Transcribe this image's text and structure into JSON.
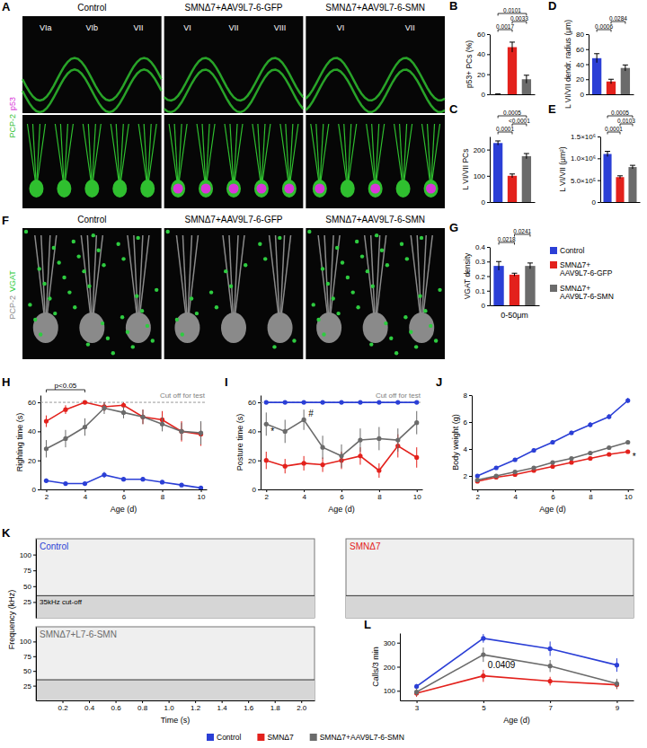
{
  "images": [
    {
      "panel": "A",
      "columns": [
        "Control",
        "SMNΔ7+AAV9L7-6-GFP",
        "SMNΔ7+AAV9L7-6-SMN"
      ],
      "channels": [
        "PCP-2",
        "p53"
      ],
      "channel_colors": [
        "#2fbf2f",
        "#d936d9"
      ],
      "lobule_labels": [
        [
          "VIa",
          "VIb",
          "VII"
        ],
        [
          "VI",
          "VII",
          "VIII"
        ],
        [
          "VI",
          "VII"
        ]
      ]
    },
    {
      "panel": "F",
      "columns": [
        "Control",
        "SMNΔ7+AAV9L7-6-GFP",
        "SMNΔ7+AAV9L7-6-SMN"
      ],
      "channels": [
        "PCP-2",
        "VGAT"
      ],
      "channel_colors": [
        "#8a8a8a",
        "#2ecc40"
      ]
    }
  ],
  "legends": [
    {
      "entries": [
        {
          "name": "Control",
          "color": "#2b3fd6"
        },
        {
          "name": "SMNΔ7+AAV9L7-6-GFP",
          "color": "#e3211c"
        },
        {
          "name": "SMNΔ7+AAV9L7-6-SMN",
          "color": "#6b6b6b"
        }
      ]
    },
    {
      "entries": [
        {
          "name": "Control",
          "color": "#2b3fd6"
        },
        {
          "name": "SMNΔ7",
          "color": "#e3211c"
        },
        {
          "name": "SMNΔ7+AAV9L7-6-SMN",
          "color": "#6b6b6b"
        }
      ]
    }
  ],
  "chart_data": [
    {
      "type": "bar",
      "panel": "B",
      "y_label": "p53+ PCs (%)",
      "categories": [
        null,
        null,
        null
      ],
      "values": [
        0,
        47,
        15
      ],
      "errors": [
        0.5,
        5,
        4
      ],
      "colors": [
        "#2b3fd6",
        "#e3211c",
        "#6b6b6b"
      ],
      "ylim": [
        0,
        60
      ],
      "yticks": [
        0,
        20,
        40,
        60
      ],
      "tick_labels": "y",
      "annotations": [
        {
          "text": "0.0017",
          "between": [
            0,
            1
          ]
        },
        {
          "text": "0.0033",
          "between": [
            1,
            2
          ]
        },
        {
          "text": "0.0101",
          "between": [
            0,
            2
          ]
        }
      ]
    },
    {
      "type": "bar",
      "panel": "C",
      "y_label": "L VI/VII PCs",
      "categories": [
        null,
        null,
        null
      ],
      "values": [
        225,
        100,
        175
      ],
      "errors": [
        8,
        7,
        10
      ],
      "colors": [
        "#2b3fd6",
        "#e3211c",
        "#6b6b6b"
      ],
      "ylim": [
        0,
        250
      ],
      "yticks": [
        0,
        100,
        200
      ],
      "tick_labels": "y",
      "annotations": [
        {
          "text": "0.0001",
          "between": [
            0,
            1
          ]
        },
        {
          "text": "<0.0001",
          "between": [
            1,
            2
          ]
        },
        {
          "text": "0.0005",
          "between": [
            0,
            2
          ]
        }
      ]
    },
    {
      "type": "bar",
      "panel": "D",
      "y_label": "L VI/VII dendr. radius (μm)",
      "categories": [
        null,
        null,
        null
      ],
      "values": [
        48,
        17,
        35
      ],
      "errors": [
        6,
        3,
        4
      ],
      "colors": [
        "#2b3fd6",
        "#e3211c",
        "#6b6b6b"
      ],
      "ylim": [
        0,
        80
      ],
      "yticks": [
        0,
        20,
        40,
        60,
        80
      ],
      "tick_labels": "y",
      "annotations": [
        {
          "text": "0.0006",
          "between": [
            0,
            1
          ]
        },
        {
          "text": "0.0284",
          "between": [
            1,
            2
          ]
        }
      ]
    },
    {
      "type": "bar",
      "panel": "E",
      "y_label": "L VI/VII (μm²)",
      "categories": [
        null,
        null,
        null
      ],
      "values": [
        1100000,
        570000,
        800000
      ],
      "errors": [
        60000,
        30000,
        40000
      ],
      "colors": [
        "#2b3fd6",
        "#e3211c",
        "#6b6b6b"
      ],
      "ylim": [
        0,
        1500000
      ],
      "yticks": [
        0,
        {
          "value": 500000,
          "label": "5.0×10⁵"
        },
        {
          "value": 1000000,
          "label": "1.0×10⁶"
        },
        {
          "value": 1500000,
          "label": "1.5×10⁶"
        }
      ],
      "tick_labels": "y",
      "annotations": [
        {
          "text": "0.0001",
          "between": [
            0,
            1
          ]
        },
        {
          "text": "0.0103",
          "between": [
            1,
            2
          ]
        },
        {
          "text": "0.0005",
          "between": [
            0,
            2
          ]
        }
      ]
    },
    {
      "type": "bar",
      "panel": "G",
      "y_label": "VGAT density",
      "x_label": "0-50μm",
      "categories": [
        null,
        null,
        null
      ],
      "values": [
        0.27,
        0.21,
        0.27
      ],
      "errors": [
        0.03,
        0.01,
        0.02
      ],
      "colors": [
        "#2b3fd6",
        "#e3211c",
        "#6b6b6b"
      ],
      "ylim": [
        0,
        0.4
      ],
      "yticks": [
        0,
        0.1,
        0.2,
        0.3,
        0.4
      ],
      "tick_labels": "y",
      "annotations": [
        {
          "text": "0.0218",
          "between": [
            0,
            1
          ]
        },
        {
          "text": "0.0241",
          "between": [
            1,
            2
          ]
        }
      ]
    },
    {
      "type": "line",
      "panel": "H",
      "x_label": "Age (d)",
      "y_label": "Righting time (s)",
      "x": [
        2,
        3,
        4,
        5,
        6,
        7,
        8,
        9,
        10
      ],
      "xlim": [
        1.7,
        10.3
      ],
      "xticks": [
        2,
        4,
        6,
        8,
        10
      ],
      "ylim": [
        0,
        65
      ],
      "yticks": [
        0,
        20,
        40,
        60
      ],
      "reference_line": {
        "value": 60,
        "label": "Cut off for test"
      },
      "annotations": [
        {
          "text": "p<0.05",
          "x": [
            2,
            4
          ]
        }
      ],
      "series": [
        {
          "color": "#2b3fd6",
          "marker": "circle",
          "values": [
            6,
            4,
            4,
            10,
            7,
            7,
            5,
            3,
            1
          ],
          "errors": [
            1.5,
            1,
            1,
            2,
            1.5,
            1.5,
            1,
            1,
            0.5
          ]
        },
        {
          "color": "#e3211c",
          "marker": "circle",
          "values": [
            47,
            55,
            60,
            57,
            58,
            50,
            48,
            40,
            38
          ],
          "errors": [
            4,
            3,
            0,
            3,
            2,
            5,
            6,
            7,
            8
          ]
        },
        {
          "color": "#6b6b6b",
          "marker": "circle",
          "values": [
            28,
            35,
            43,
            56,
            53,
            50,
            45,
            40,
            39
          ],
          "errors": [
            6,
            6,
            6,
            4,
            4,
            5,
            5,
            6,
            8
          ]
        }
      ]
    },
    {
      "type": "line",
      "panel": "I",
      "x_label": "Age (d)",
      "y_label": "Posture time (s)",
      "x": [
        2,
        3,
        4,
        5,
        6,
        7,
        8,
        9,
        10
      ],
      "xlim": [
        1.7,
        10.3
      ],
      "xticks": [
        2,
        4,
        6,
        8,
        10
      ],
      "ylim": [
        0,
        65
      ],
      "yticks": [
        0,
        20,
        40,
        60
      ],
      "reference_line": {
        "value": 60,
        "label": "Cut off for test"
      },
      "annotations": [
        {
          "text": "*",
          "x": 2,
          "y": 38
        },
        {
          "text": "#",
          "x": 4,
          "y": 50
        }
      ],
      "series": [
        {
          "color": "#2b3fd6",
          "marker": "circle",
          "values": [
            60,
            60,
            60,
            60,
            60,
            60,
            60,
            60,
            60
          ],
          "errors": [
            0,
            0,
            0,
            0,
            0,
            0,
            0,
            0,
            0
          ]
        },
        {
          "color": "#e3211c",
          "marker": "circle",
          "values": [
            20,
            16,
            18,
            17,
            20,
            23,
            13,
            30,
            22
          ],
          "errors": [
            6,
            5,
            5,
            5,
            6,
            6,
            5,
            8,
            7
          ]
        },
        {
          "color": "#6b6b6b",
          "marker": "circle",
          "values": [
            45,
            40,
            48,
            29,
            23,
            34,
            35,
            34,
            46
          ],
          "errors": [
            8,
            8,
            7,
            8,
            8,
            8,
            8,
            8,
            8
          ]
        }
      ]
    },
    {
      "type": "line",
      "panel": "J",
      "x_label": "Age (d)",
      "y_label": "Body weight (g)",
      "x": [
        2,
        3,
        4,
        5,
        6,
        7,
        8,
        9,
        10
      ],
      "xlim": [
        1.7,
        10.3
      ],
      "xticks": [
        2,
        4,
        6,
        8,
        10
      ],
      "ylim": [
        1,
        8
      ],
      "yticks": [
        2,
        4,
        6,
        8
      ],
      "annotations": [
        {
          "text": "*",
          "x": 10,
          "y": 3.2
        }
      ],
      "series": [
        {
          "color": "#2b3fd6",
          "marker": "circle",
          "values": [
            2.0,
            2.6,
            3.2,
            3.9,
            4.5,
            5.2,
            5.8,
            6.4,
            7.6
          ],
          "errors": [
            0.1,
            0.1,
            0.1,
            0.15,
            0.15,
            0.15,
            0.2,
            0.2,
            0.2
          ]
        },
        {
          "color": "#e3211c",
          "marker": "circle",
          "values": [
            1.6,
            1.9,
            2.1,
            2.4,
            2.7,
            3.0,
            3.3,
            3.6,
            3.8
          ],
          "errors": [
            0.1,
            0.1,
            0.1,
            0.1,
            0.1,
            0.1,
            0.1,
            0.1,
            0.1
          ]
        },
        {
          "color": "#6b6b6b",
          "marker": "circle",
          "values": [
            1.7,
            2.0,
            2.3,
            2.6,
            3.0,
            3.3,
            3.7,
            4.1,
            4.5
          ],
          "errors": [
            0.1,
            0.1,
            0.1,
            0.1,
            0.1,
            0.1,
            0.1,
            0.1,
            0.1
          ]
        }
      ]
    },
    {
      "type": "spectrogram",
      "panel": "K",
      "x_label": "Time (s)",
      "y_label": "Frequency (kHz)",
      "xlim": [
        0,
        2.1
      ],
      "xticks": [
        0.2,
        0.4,
        0.6,
        0.8,
        {
          "value": 1,
          "label": "1.0"
        },
        1.2,
        1.4,
        1.6,
        1.8,
        {
          "value": 2,
          "label": "2.0"
        }
      ],
      "ylim": [
        0,
        125
      ],
      "yticks": [
        25,
        50,
        75,
        100
      ],
      "cutoff": {
        "value": 35,
        "label": "35kHz cut-off"
      },
      "panels": [
        {
          "name": "Control",
          "color": "#2b3fd6"
        },
        {
          "name": "SMNΔ7",
          "color": "#e3211c"
        },
        {
          "name": "SMNΔ7+L7-6-SMN",
          "color": "#6b6b6b"
        }
      ]
    },
    {
      "type": "line",
      "panel": "L",
      "x_label": "Age (d)",
      "y_label": "Calls/3 min",
      "x": [
        3,
        5,
        7,
        9
      ],
      "xlim": [
        2.5,
        9.5
      ],
      "xticks": [
        3,
        5,
        7,
        9
      ],
      "ylim": [
        60,
        340
      ],
      "yticks": [
        100,
        200,
        300
      ],
      "annotations": [
        {
          "text": "0.0409",
          "x": 5,
          "y": 195
        }
      ],
      "series": [
        {
          "color": "#2b3fd6",
          "marker": "circle",
          "values": [
            118,
            318,
            275,
            207
          ],
          "errors": [
            10,
            18,
            30,
            28
          ]
        },
        {
          "color": "#e3211c",
          "marker": "circle",
          "values": [
            90,
            162,
            140,
            125
          ],
          "errors": [
            15,
            25,
            18,
            18
          ]
        },
        {
          "color": "#6b6b6b",
          "marker": "circle",
          "values": [
            95,
            250,
            203,
            130
          ],
          "errors": [
            15,
            30,
            25,
            20
          ]
        }
      ]
    }
  ]
}
